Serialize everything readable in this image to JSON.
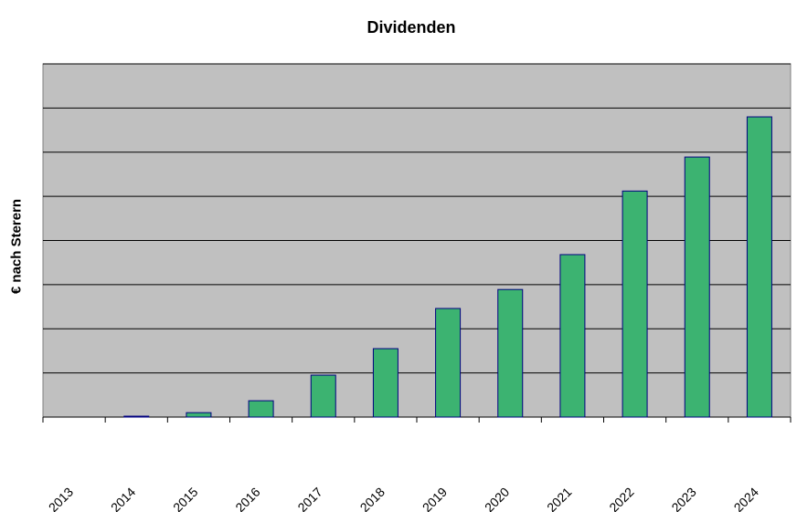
{
  "chart_data": {
    "type": "bar",
    "title": "Dividenden",
    "ylabel": "€ nach Sterern",
    "xlabel": "",
    "categories": [
      "2013",
      "2014",
      "2015",
      "2016",
      "2017",
      "2018",
      "2019",
      "2020",
      "2021",
      "2022",
      "2023",
      "2024"
    ],
    "values": [
      0,
      0.02,
      0.1,
      0.37,
      0.95,
      1.55,
      2.46,
      2.89,
      3.68,
      5.12,
      5.89,
      6.8
    ],
    "ylim": [
      0,
      8
    ],
    "y_tick_labels_shown": false,
    "grid": true,
    "colors": {
      "plot_background": "#c0c0c0",
      "bar_fill": "#3cb371",
      "bar_border": "#000080",
      "gridline": "#000000"
    }
  }
}
